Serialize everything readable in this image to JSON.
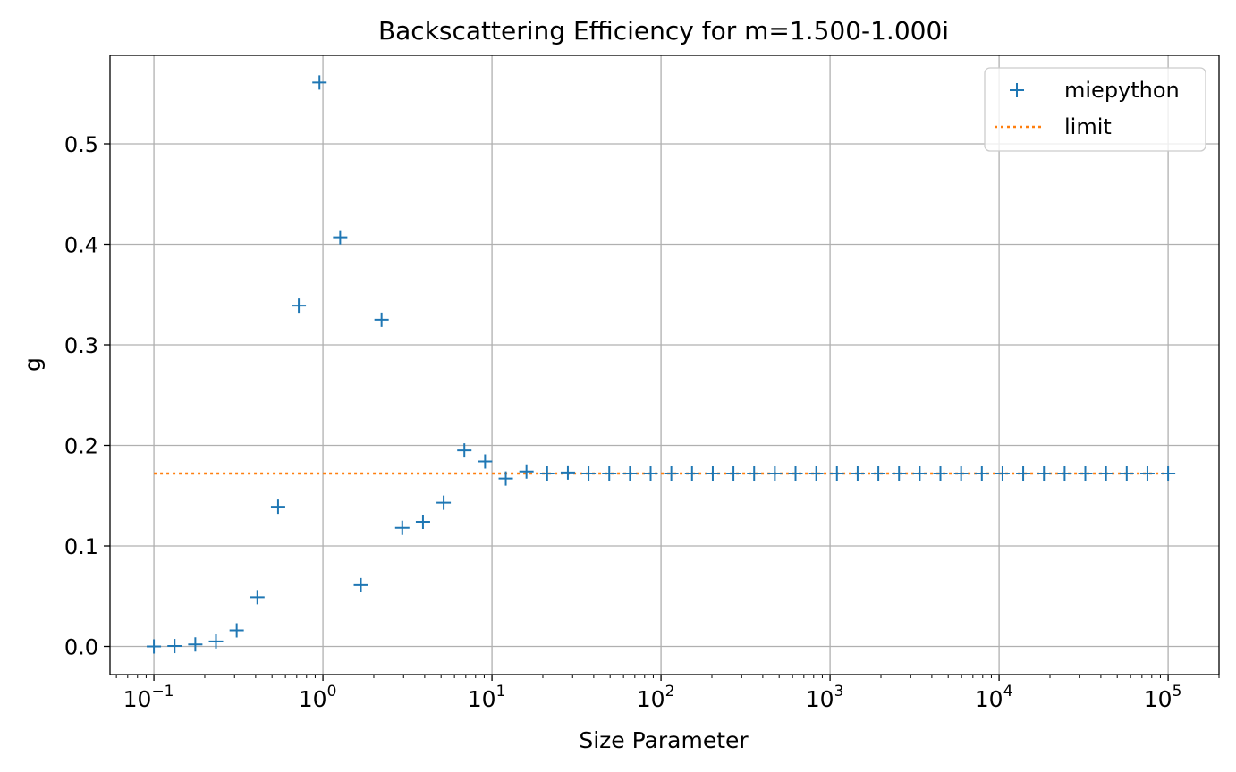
{
  "chart_data": {
    "type": "scatter",
    "title": "Backscattering Efficiency for m=1.500-1.000i",
    "xlabel": "Size Parameter",
    "ylabel": "g",
    "xscale": "log",
    "xlim": [
      0.055,
      200000
    ],
    "ylim": [
      -0.028,
      0.588
    ],
    "grid": true,
    "legend_position": "top-right",
    "x_ticks": [
      {
        "value": 0.1,
        "base": "10",
        "exp": "−1"
      },
      {
        "value": 1,
        "base": "10",
        "exp": "0"
      },
      {
        "value": 10,
        "base": "10",
        "exp": "1"
      },
      {
        "value": 100,
        "base": "10",
        "exp": "2"
      },
      {
        "value": 1000,
        "base": "10",
        "exp": "3"
      },
      {
        "value": 10000,
        "base": "10",
        "exp": "4"
      },
      {
        "value": 100000,
        "base": "10",
        "exp": "5"
      }
    ],
    "y_ticks": [
      {
        "value": 0.0,
        "label": "0.0"
      },
      {
        "value": 0.1,
        "label": "0.1"
      },
      {
        "value": 0.2,
        "label": "0.2"
      },
      {
        "value": 0.3,
        "label": "0.3"
      },
      {
        "value": 0.4,
        "label": "0.4"
      },
      {
        "value": 0.5,
        "label": "0.5"
      }
    ],
    "series": [
      {
        "name": "miepython",
        "marker": "+",
        "color": "#1f77b4",
        "points": [
          [
            0.1,
            0.0
          ],
          [
            0.1326,
            0.0004
          ],
          [
            0.1758,
            0.002
          ],
          [
            0.233,
            0.005
          ],
          [
            0.3089,
            0.016
          ],
          [
            0.4095,
            0.049
          ],
          [
            0.5429,
            0.139
          ],
          [
            0.7197,
            0.339
          ],
          [
            0.9541,
            0.561
          ],
          [
            1.265,
            0.407
          ],
          [
            1.677,
            0.061
          ],
          [
            2.223,
            0.325
          ],
          [
            2.947,
            0.118
          ],
          [
            3.907,
            0.124
          ],
          [
            5.179,
            0.143
          ],
          [
            6.866,
            0.195
          ],
          [
            9.103,
            0.184
          ],
          [
            12.07,
            0.167
          ],
          [
            16.0,
            0.174
          ],
          [
            21.21,
            0.172
          ],
          [
            28.12,
            0.173
          ],
          [
            37.28,
            0.172
          ],
          [
            49.42,
            0.172
          ],
          [
            65.52,
            0.172
          ],
          [
            86.85,
            0.172
          ],
          [
            115.1,
            0.172
          ],
          [
            152.6,
            0.172
          ],
          [
            202.4,
            0.172
          ],
          [
            268.3,
            0.172
          ],
          [
            355.6,
            0.172
          ],
          [
            471.4,
            0.172
          ],
          [
            625.0,
            0.172
          ],
          [
            828.6,
            0.172
          ],
          [
            1098,
            0.172
          ],
          [
            1456,
            0.172
          ],
          [
            1931,
            0.172
          ],
          [
            2559,
            0.172
          ],
          [
            3393,
            0.172
          ],
          [
            4498,
            0.172
          ],
          [
            5963,
            0.172
          ],
          [
            7906,
            0.172
          ],
          [
            10480,
            0.172
          ],
          [
            13890,
            0.172
          ],
          [
            18420,
            0.172
          ],
          [
            24420,
            0.172
          ],
          [
            32370,
            0.172
          ],
          [
            42920,
            0.172
          ],
          [
            56900,
            0.172
          ],
          [
            75430,
            0.172
          ],
          [
            100000,
            0.172
          ]
        ]
      },
      {
        "name": "limit",
        "style": "dotted-line",
        "color": "#ff7f0e",
        "points": [
          [
            0.1,
            0.172
          ],
          [
            100000,
            0.172
          ]
        ]
      }
    ]
  }
}
